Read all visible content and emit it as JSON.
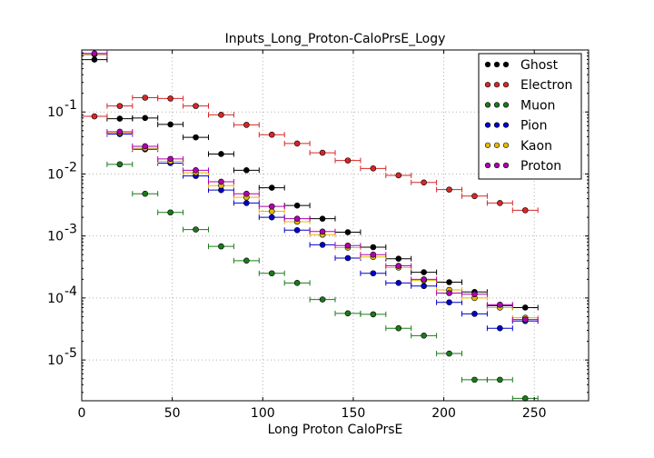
{
  "chart_data": {
    "type": "scatter",
    "title": "Inputs_Long_Proton-CaloPrsE_Logy",
    "xlabel": "Long Proton CaloPrsE",
    "ylabel": "",
    "xlim": [
      0,
      280
    ],
    "ylog": true,
    "ylim": [
      2.2e-06,
      1.0
    ],
    "grid": true,
    "legend_position": "top-right",
    "x_ticks": [
      0,
      50,
      100,
      150,
      200,
      250
    ],
    "y_ticks": [
      {
        "value": 1e-05,
        "base": "10",
        "exp": "-5"
      },
      {
        "value": 0.0001,
        "base": "10",
        "exp": "-4"
      },
      {
        "value": 0.001,
        "base": "10",
        "exp": "-3"
      },
      {
        "value": 0.01,
        "base": "10",
        "exp": "-2"
      },
      {
        "value": 0.1,
        "base": "10",
        "exp": "-1"
      }
    ],
    "bin_width": 14,
    "series": [
      {
        "name": "Ghost",
        "color": "#000000",
        "x": [
          7,
          21,
          35,
          49,
          63,
          77,
          91,
          105,
          119,
          133,
          147,
          161,
          175,
          189,
          203,
          217,
          231,
          245
        ],
        "y": [
          0.7,
          0.078,
          0.08,
          0.063,
          0.039,
          0.021,
          0.0115,
          0.006,
          0.0031,
          0.0019,
          0.00115,
          0.00066,
          0.00043,
          0.00026,
          0.00018,
          0.000125,
          7.5e-05,
          7e-05
        ]
      },
      {
        "name": "Electron",
        "color": "#d62728",
        "x": [
          7,
          21,
          35,
          49,
          63,
          77,
          91,
          105,
          119,
          133,
          147,
          161,
          175,
          189,
          203,
          217,
          231,
          245
        ],
        "y": [
          0.085,
          0.125,
          0.17,
          0.165,
          0.125,
          0.09,
          0.062,
          0.043,
          0.031,
          0.022,
          0.0165,
          0.0123,
          0.0095,
          0.0073,
          0.0056,
          0.0044,
          0.0034,
          0.0026
        ]
      },
      {
        "name": "Muon",
        "color": "#1a7a1a",
        "x": [
          21,
          35,
          49,
          63,
          77,
          91,
          105,
          119,
          133,
          147,
          161,
          175,
          189,
          203,
          217,
          231,
          245
        ],
        "y": [
          0.0143,
          0.0048,
          0.0024,
          0.00127,
          0.00068,
          0.0004,
          0.00025,
          0.000175,
          9.45e-05,
          5.65e-05,
          5.45e-05,
          3.25e-05,
          2.47e-05,
          1.27e-05,
          4.8e-06,
          4.8e-06,
          2.4e-06
        ]
      },
      {
        "name": "Pion",
        "color": "#0000cc",
        "x": [
          7,
          21,
          35,
          49,
          63,
          77,
          91,
          105,
          119,
          133,
          147,
          161,
          175,
          189,
          203,
          217,
          231,
          245
        ],
        "y": [
          0.85,
          0.044,
          0.025,
          0.015,
          0.0093,
          0.0055,
          0.0034,
          0.002,
          0.00124,
          0.00072,
          0.00044,
          0.00025,
          0.000175,
          0.000156,
          8.5e-05,
          5.55e-05,
          3.25e-05,
          4.25e-05
        ]
      },
      {
        "name": "Kaon",
        "color": "#e6b800",
        "x": [
          7,
          21,
          35,
          49,
          63,
          77,
          91,
          105,
          119,
          133,
          147,
          161,
          175,
          189,
          203,
          217,
          231,
          245
        ],
        "y": [
          0.86,
          0.046,
          0.026,
          0.016,
          0.0105,
          0.0065,
          0.0042,
          0.0025,
          0.0017,
          0.00105,
          0.00065,
          0.00046,
          0.00031,
          0.000192,
          0.000135,
          0.0001,
          7e-05,
          4.8e-05
        ]
      },
      {
        "name": "Proton",
        "color": "#b000b0",
        "x": [
          7,
          21,
          35,
          49,
          63,
          77,
          91,
          105,
          119,
          133,
          147,
          161,
          175,
          189,
          203,
          217,
          231,
          245
        ],
        "y": [
          0.88,
          0.048,
          0.028,
          0.0175,
          0.0115,
          0.0075,
          0.0048,
          0.003,
          0.0019,
          0.00118,
          0.0007,
          0.0005,
          0.00033,
          0.0002,
          0.00012,
          0.000115,
          7.8e-05,
          4.5e-05
        ]
      }
    ]
  }
}
